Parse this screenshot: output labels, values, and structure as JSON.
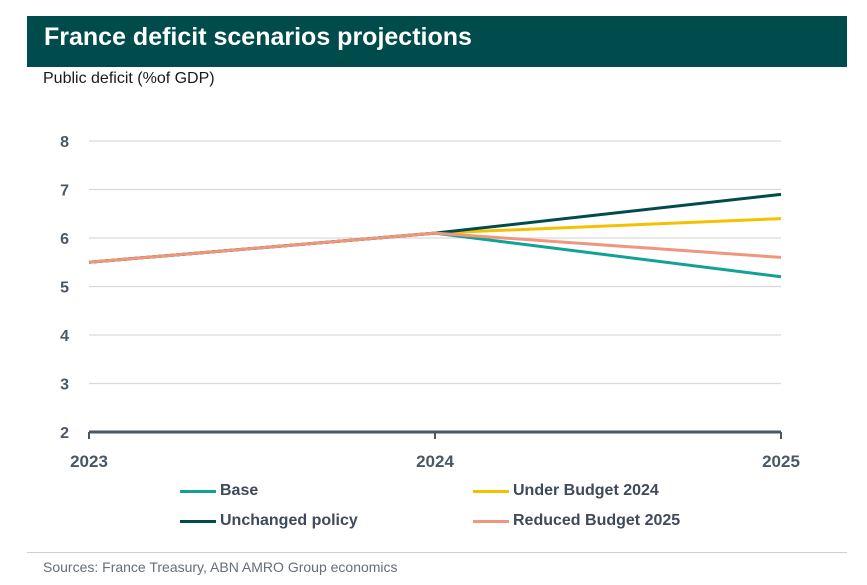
{
  "header": {
    "title": "France deficit scenarios projections",
    "subtitle": "Public deficit (%of GDP)"
  },
  "footer": {
    "source": "Sources: France Treasury, ABN AMRO Group economics"
  },
  "colors": {
    "title_bg": "#004c4c",
    "axis": "#4a5866",
    "grid": "#d9d9d9"
  },
  "chart_data": {
    "type": "line",
    "x": [
      "2023",
      "2024",
      "2025"
    ],
    "ylim": [
      2,
      8
    ],
    "yticks": [
      2,
      3,
      4,
      5,
      6,
      7,
      8
    ],
    "grid": true,
    "legend_position": "bottom",
    "series": [
      {
        "name": "Base",
        "color": "#12a295",
        "values": [
          5.5,
          6.1,
          5.2
        ]
      },
      {
        "name": "Under Budget 2024",
        "color": "#f5c000",
        "values": [
          5.5,
          6.1,
          6.4
        ]
      },
      {
        "name": "Unchanged policy",
        "color": "#004c4c",
        "values": [
          5.5,
          6.1,
          6.9
        ]
      },
      {
        "name": "Reduced Budget 2025",
        "color": "#f2957e",
        "values": [
          5.5,
          6.1,
          5.6
        ]
      }
    ]
  }
}
